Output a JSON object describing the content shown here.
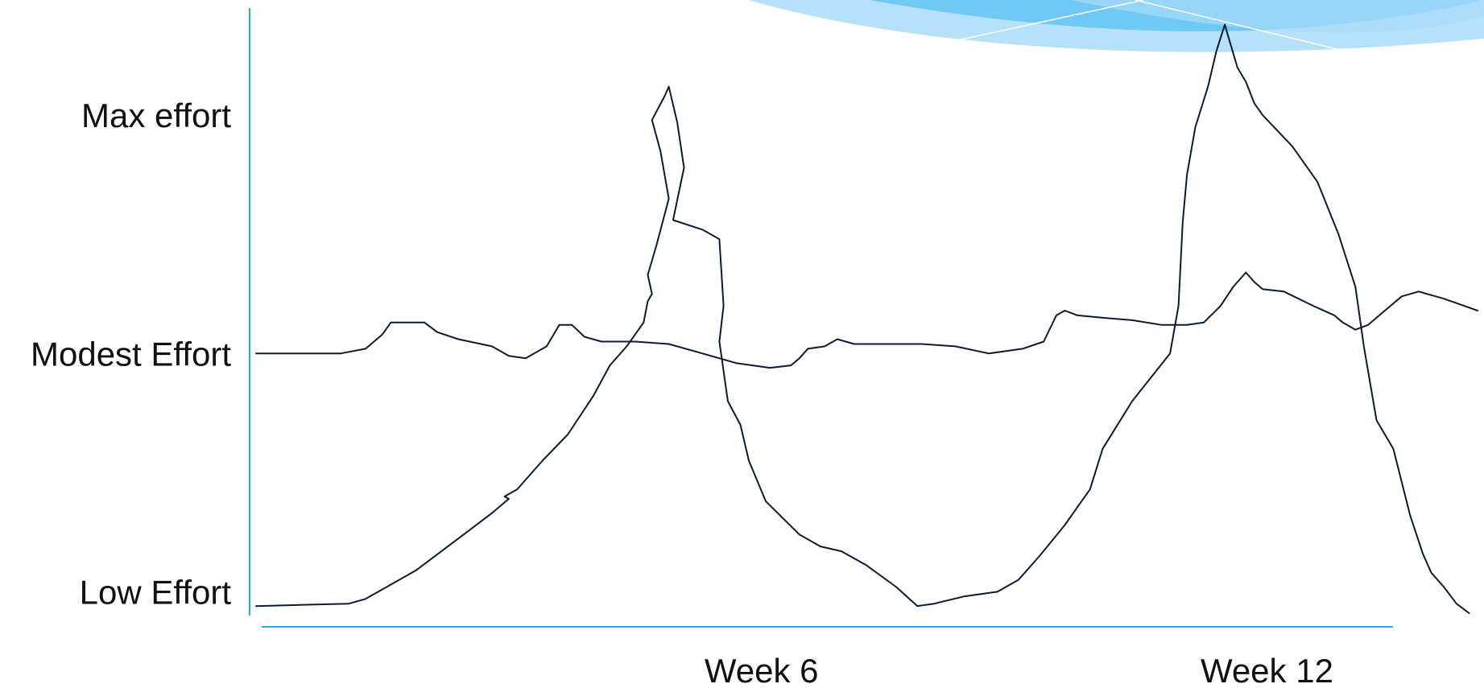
{
  "colors": {
    "axis": "#29a9e8",
    "line": "#0d1b2e",
    "banner_dark": "#5ec3f4",
    "banner_light": "#a8dcfa"
  },
  "chart_data": {
    "type": "line",
    "y_axis": {
      "tick_labels": [
        "Low Effort",
        "Modest Effort",
        "Max effort"
      ],
      "tick_values": [
        0,
        1,
        2
      ],
      "ylim": [
        -0.1,
        2.45
      ]
    },
    "x_axis": {
      "tick_labels": [
        "Week 6",
        "Week 12"
      ],
      "tick_values": [
        6,
        12
      ],
      "xlim": [
        0,
        14.5
      ]
    },
    "grid": false,
    "legend": "none",
    "series": [
      {
        "x": [
          0,
          1.0,
          1.3,
          1.5,
          1.6,
          2.0,
          2.15,
          2.4,
          2.8,
          3.0,
          3.2,
          3.45,
          3.6,
          3.75,
          3.9,
          4.1,
          4.5,
          4.9,
          5.3,
          5.7,
          6.1,
          6.35,
          6.45,
          6.55,
          6.75,
          6.9,
          7.0,
          7.1,
          7.3,
          7.5,
          7.9,
          8.3,
          8.7,
          9.1,
          9.35,
          9.5,
          9.6,
          9.75,
          10.05,
          10.4,
          10.75,
          11.05,
          11.25,
          11.45,
          11.6,
          11.75,
          11.85,
          11.95,
          12.2,
          12.55,
          12.8,
          12.9,
          13.05,
          13.2,
          13.4,
          13.6,
          13.8,
          14.1,
          14.5
        ],
        "y": [
          1.0,
          1.0,
          1.02,
          1.08,
          1.13,
          1.13,
          1.09,
          1.06,
          1.03,
          0.99,
          0.98,
          1.03,
          1.12,
          1.12,
          1.07,
          1.05,
          1.05,
          1.04,
          1.0,
          0.96,
          0.94,
          0.95,
          0.98,
          1.02,
          1.03,
          1.06,
          1.05,
          1.04,
          1.04,
          1.04,
          1.04,
          1.03,
          1.0,
          1.02,
          1.05,
          1.16,
          1.18,
          1.16,
          1.15,
          1.14,
          1.12,
          1.12,
          1.13,
          1.2,
          1.28,
          1.34,
          1.3,
          1.27,
          1.26,
          1.2,
          1.16,
          1.13,
          1.1,
          1.12,
          1.18,
          1.24,
          1.26,
          1.23,
          1.18
        ]
      },
      {
        "x": [
          0,
          1.1,
          1.3,
          1.6,
          1.9,
          2.2,
          2.5,
          2.8,
          3.0,
          2.95,
          3.1,
          3.4,
          3.7,
          4.0,
          4.2,
          4.4,
          4.6,
          4.65,
          4.7,
          4.65,
          4.75,
          4.9,
          4.8,
          4.7,
          4.85,
          4.9,
          5.0,
          5.08,
          4.95,
          5.3,
          5.5,
          5.55,
          5.5,
          5.6,
          5.75,
          5.85,
          6.05,
          6.45,
          6.7,
          6.95,
          7.25,
          7.6,
          7.85,
          8.05,
          8.4,
          8.8,
          9.05,
          9.3,
          9.6,
          9.9,
          10.05,
          10.4,
          10.85,
          10.95,
          11.0,
          11.05,
          11.15,
          11.3,
          11.4,
          11.5,
          11.65,
          11.75,
          11.85,
          11.95,
          12.3,
          12.6,
          12.85,
          13.05,
          13.15,
          13.3,
          13.5,
          13.7,
          13.85,
          13.95,
          14.1,
          14.25,
          14.4
        ],
        "y": [
          -0.06,
          -0.05,
          -0.03,
          0.03,
          0.09,
          0.17,
          0.25,
          0.33,
          0.39,
          0.4,
          0.43,
          0.55,
          0.66,
          0.82,
          0.95,
          1.03,
          1.13,
          1.22,
          1.25,
          1.33,
          1.45,
          1.65,
          1.85,
          1.98,
          2.08,
          2.12,
          1.97,
          1.78,
          1.56,
          1.52,
          1.48,
          1.2,
          1.05,
          0.8,
          0.7,
          0.55,
          0.38,
          0.24,
          0.19,
          0.17,
          0.11,
          0.02,
          -0.06,
          -0.05,
          -0.02,
          0.0,
          0.05,
          0.15,
          0.28,
          0.43,
          0.6,
          0.8,
          1.0,
          1.2,
          1.55,
          1.75,
          1.95,
          2.12,
          2.27,
          2.38,
          2.2,
          2.14,
          2.05,
          2.0,
          1.87,
          1.72,
          1.5,
          1.28,
          1.03,
          0.72,
          0.6,
          0.32,
          0.16,
          0.08,
          0.02,
          -0.05,
          -0.09
        ]
      }
    ]
  }
}
